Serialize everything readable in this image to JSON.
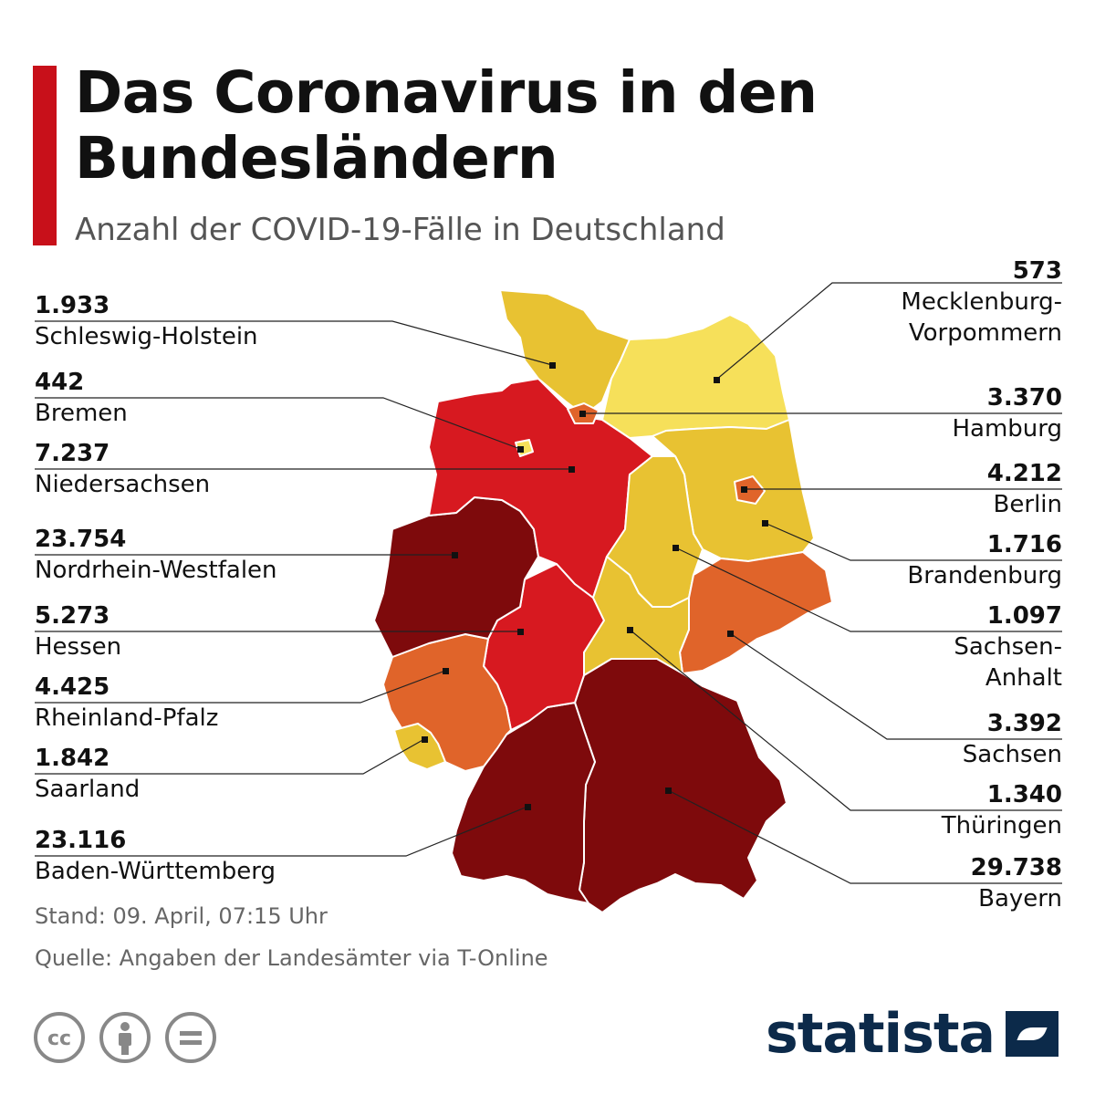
{
  "header": {
    "title": "Das Coronavirus in den Bundesländern",
    "subtitle": "Anzahl der COVID-19-Fälle in Deutschland",
    "accent_color": "#c8101a"
  },
  "map_data": {
    "type": "choropleth",
    "legend_colors": {
      "low": "#f6e05a",
      "mid_low": "#e8c232",
      "mid": "#e0642a",
      "high": "#d71920",
      "highest": "#7e0a0c"
    },
    "regions": [
      {
        "name": "Schleswig-Holstein",
        "value": "1.933",
        "color": "#e8c232"
      },
      {
        "name": "Bremen",
        "value": "442",
        "color": "#f6e05a"
      },
      {
        "name": "Niedersachsen",
        "value": "7.237",
        "color": "#d71920"
      },
      {
        "name": "Nordrhein-Westfalen",
        "value": "23.754",
        "color": "#7e0a0c"
      },
      {
        "name": "Hessen",
        "value": "5.273",
        "color": "#d71920"
      },
      {
        "name": "Rheinland-Pfalz",
        "value": "4.425",
        "color": "#e0642a"
      },
      {
        "name": "Saarland",
        "value": "1.842",
        "color": "#e8c232"
      },
      {
        "name": "Baden-Württemberg",
        "value": "23.116",
        "color": "#7e0a0c"
      },
      {
        "name": "Mecklenburg-Vorpommern",
        "line1": "Mecklenburg-",
        "line2": "Vorpommern",
        "value": "573",
        "color": "#f6e05a"
      },
      {
        "name": "Hamburg",
        "value": "3.370",
        "color": "#e0642a"
      },
      {
        "name": "Berlin",
        "value": "4.212",
        "color": "#e0642a"
      },
      {
        "name": "Brandenburg",
        "value": "1.716",
        "color": "#e8c232"
      },
      {
        "name": "Sachsen-Anhalt",
        "line1": "Sachsen-",
        "line2": "Anhalt",
        "value": "1.097",
        "color": "#e8c232"
      },
      {
        "name": "Sachsen",
        "value": "3.392",
        "color": "#e0642a"
      },
      {
        "name": "Thüringen",
        "value": "1.340",
        "color": "#e8c232"
      },
      {
        "name": "Bayern",
        "value": "29.738",
        "color": "#7e0a0c"
      }
    ]
  },
  "footer": {
    "date": "Stand: 09. April, 07:15 Uhr",
    "source": "Quelle: Angaben der Landesämter via T-Online",
    "brand": "statista",
    "brand_color": "#0c2a4a"
  },
  "icons": [
    "cc-icon",
    "attribution-icon",
    "no-derivatives-icon",
    "statista-logo-icon"
  ]
}
